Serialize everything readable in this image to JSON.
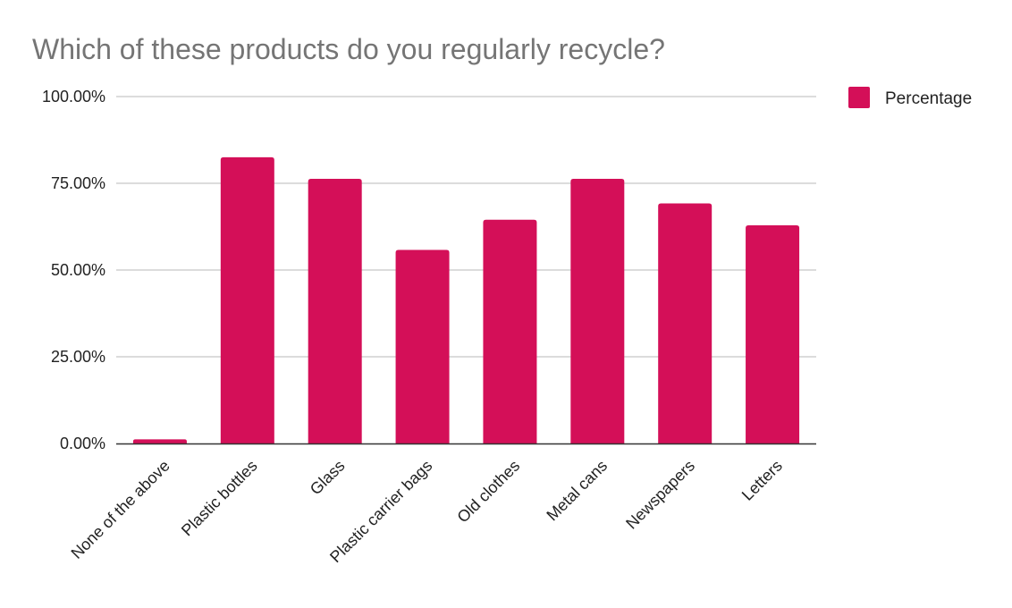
{
  "chart_data": {
    "type": "bar",
    "title": "Which of these products do you regularly recycle?",
    "xlabel": "",
    "ylabel": "",
    "categories": [
      "None of the above",
      "Plastic bottles",
      "Glass",
      "Plastic carrier bags",
      "Old clothes",
      "Metal cans",
      "Newspapers",
      "Letters"
    ],
    "series": [
      {
        "name": "Percentage",
        "color": "#d40f58",
        "values": [
          1.2,
          82.5,
          76.3,
          55.8,
          64.5,
          76.3,
          69.2,
          62.9
        ]
      }
    ],
    "ylim": [
      0,
      100
    ],
    "yticks": [
      "0.00%",
      "25.00%",
      "50.00%",
      "75.00%",
      "100.00%"
    ],
    "ytick_values": [
      0,
      25,
      50,
      75,
      100
    ],
    "grid": true,
    "legend_position": "right",
    "gridline_color": "#c8c8c8",
    "axis_color": "#333333"
  }
}
